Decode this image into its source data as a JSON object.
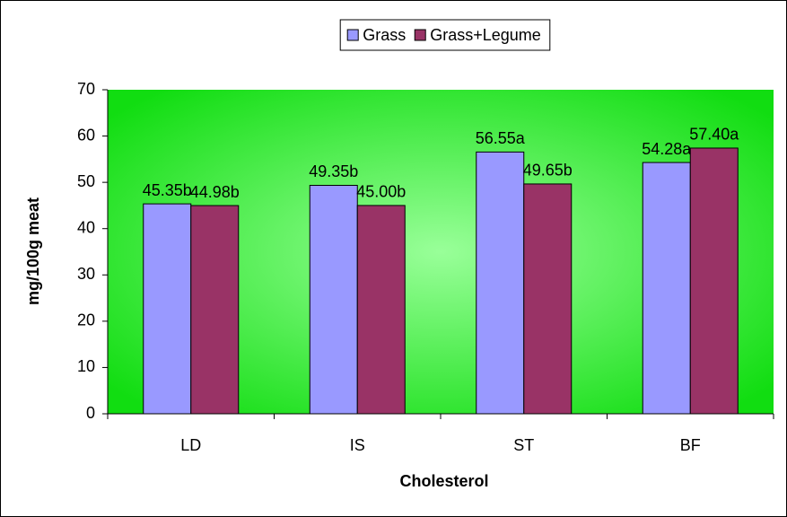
{
  "chart_data": {
    "type": "bar",
    "x_label": "Cholesterol",
    "y_label": "mg/100g meat",
    "categories": [
      "LD",
      "IS",
      "ST",
      "BF"
    ],
    "series": [
      {
        "name": "Grass",
        "color": "#9999ff",
        "values": [
          45.35,
          49.35,
          56.55,
          54.28
        ],
        "value_labels": [
          "45.35b",
          "49.35b",
          "56.55a",
          "54.28a"
        ]
      },
      {
        "name": "Grass+Legume",
        "color": "#993366",
        "values": [
          44.98,
          45.0,
          49.65,
          57.4
        ],
        "value_labels": [
          "44.98b",
          "45.00b",
          "49.65b",
          "57.40a"
        ]
      }
    ],
    "ylim": [
      0,
      70
    ],
    "yticks": [
      0,
      10,
      20,
      30,
      40,
      50,
      60,
      70
    ],
    "legend": "top"
  }
}
